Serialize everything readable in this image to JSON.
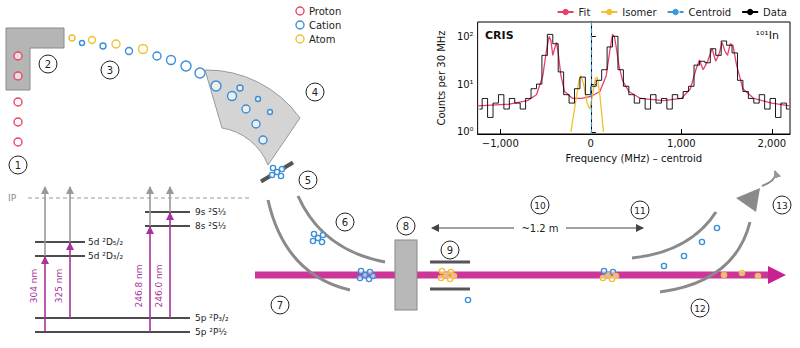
{
  "diagram": {
    "particle_legend": [
      {
        "label": "Proton",
        "color": "#e8486a"
      },
      {
        "label": "Cation",
        "color": "#3a8fd8"
      },
      {
        "label": "Atom",
        "color": "#f0c030"
      }
    ],
    "step_numbers": [
      "1",
      "2",
      "3",
      "4",
      "5",
      "6",
      "7",
      "8",
      "9",
      "10",
      "11",
      "12",
      "13"
    ],
    "energy_levels": {
      "ionization_limit": "IP",
      "levels": [
        "9s ²S½",
        "8s ²S½",
        "5d ²D₅/₂",
        "5d ²D₃/₂",
        "5p ²P₃/₂",
        "5p ²P½"
      ],
      "laser_wavelengths": [
        "304 nm",
        "325 nm",
        "246.8 nm",
        "246.0 nm"
      ]
    },
    "flight_distance": "~1.2 m"
  },
  "chart_data": {
    "type": "line",
    "title": "CRIS",
    "annotation": "¹⁰¹In",
    "x_label": "Frequency (MHz) – centroid",
    "y_label": "Counts per 30 MHz",
    "log": "y",
    "grid": false,
    "legend": "top-right",
    "xlim": [
      -1250,
      2200
    ],
    "xticks": [
      {
        "value": -1000,
        "label": "−1,000"
      },
      0,
      {
        "value": 1000,
        "label": "1,000"
      },
      {
        "value": 2000,
        "label": "2,000"
      }
    ],
    "ylim": [
      0.9,
      200
    ],
    "yticks": [
      {
        "value": 1,
        "label": "10⁰"
      },
      {
        "value": 10,
        "label": "10¹"
      },
      {
        "value": 100,
        "label": "10²"
      }
    ],
    "series": [
      {
        "name": "Fit",
        "type": "line",
        "color": "#e8406a",
        "x": [
          -1250,
          -900,
          -700,
          -600,
          -530,
          -490,
          -460,
          -440,
          -420,
          -400,
          -380,
          -360,
          -330,
          -290,
          -200,
          -100,
          0,
          100,
          170,
          210,
          240,
          260,
          280,
          310,
          350,
          420,
          550,
          800,
          1000,
          1100,
          1160,
          1200,
          1240,
          1290,
          1340,
          1380,
          1420,
          1450,
          1480,
          1510,
          1540,
          1570,
          1610,
          1680,
          1800,
          2000,
          2200
        ],
        "values": [
          3.5,
          3.8,
          4.5,
          6,
          15,
          50,
          100,
          80,
          40,
          55,
          75,
          45,
          15,
          7,
          5,
          5,
          5.5,
          7,
          15,
          50,
          110,
          100,
          60,
          25,
          12,
          7,
          5,
          4.5,
          5,
          8,
          20,
          32,
          20,
          30,
          55,
          30,
          45,
          75,
          50,
          40,
          70,
          65,
          25,
          8,
          5,
          4,
          3.5
        ]
      },
      {
        "name": "Isomer",
        "type": "line",
        "color": "#f0c030",
        "x": [
          -220,
          -170,
          -130,
          -110,
          -80,
          -40,
          -10,
          20,
          50,
          70,
          100,
          140
        ],
        "values": [
          1,
          4,
          12,
          15,
          10,
          4,
          3,
          6,
          13,
          14,
          6,
          1
        ]
      },
      {
        "name": "Centroid",
        "type": "vline",
        "color": "#3a9ad9",
        "line_style": "dashed",
        "x": [
          0
        ]
      },
      {
        "name": "Data",
        "type": "step",
        "color": "#000000",
        "x": [
          -1230,
          -1170,
          -1110,
          -1050,
          -990,
          -930,
          -870,
          -810,
          -750,
          -690,
          -630,
          -570,
          -510,
          -450,
          -390,
          -330,
          -270,
          -210,
          -150,
          -90,
          -30,
          30,
          90,
          150,
          210,
          270,
          330,
          390,
          450,
          510,
          570,
          630,
          690,
          750,
          810,
          870,
          930,
          990,
          1050,
          1110,
          1170,
          1230,
          1290,
          1350,
          1410,
          1470,
          1530,
          1590,
          1650,
          1710,
          1770,
          1830,
          1890,
          1950,
          2010,
          2070,
          2130,
          2190
        ],
        "values": [
          3,
          5,
          2,
          4,
          6,
          3,
          5,
          4,
          3,
          5,
          8,
          10,
          40,
          110,
          70,
          18,
          6,
          4,
          8,
          14,
          6,
          9,
          12,
          20,
          60,
          100,
          20,
          9,
          6,
          4,
          5,
          3,
          6,
          4,
          5,
          3,
          6,
          5,
          7,
          9,
          25,
          30,
          28,
          55,
          40,
          80,
          65,
          45,
          12,
          7,
          5,
          4,
          6,
          3,
          5,
          2,
          4,
          3
        ]
      }
    ]
  }
}
